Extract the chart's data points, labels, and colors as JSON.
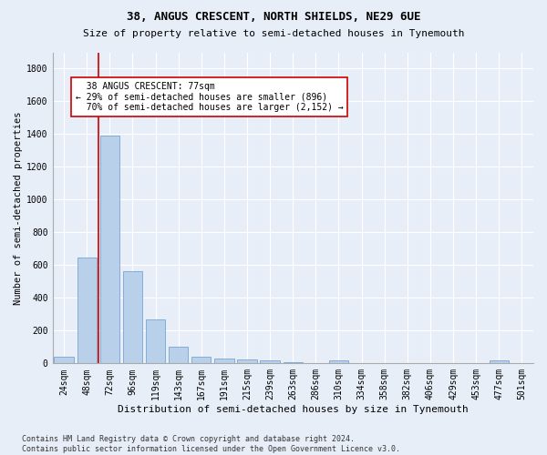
{
  "title1": "38, ANGUS CRESCENT, NORTH SHIELDS, NE29 6UE",
  "title2": "Size of property relative to semi-detached houses in Tynemouth",
  "xlabel": "Distribution of semi-detached houses by size in Tynemouth",
  "ylabel": "Number of semi-detached properties",
  "footer": "Contains HM Land Registry data © Crown copyright and database right 2024.\nContains public sector information licensed under the Open Government Licence v3.0.",
  "bar_labels": [
    "24sqm",
    "48sqm",
    "72sqm",
    "96sqm",
    "119sqm",
    "143sqm",
    "167sqm",
    "191sqm",
    "215sqm",
    "239sqm",
    "263sqm",
    "286sqm",
    "310sqm",
    "334sqm",
    "358sqm",
    "382sqm",
    "406sqm",
    "429sqm",
    "453sqm",
    "477sqm",
    "501sqm"
  ],
  "bar_values": [
    40,
    648,
    1390,
    565,
    268,
    104,
    40,
    28,
    22,
    18,
    10,
    0,
    18,
    0,
    0,
    0,
    0,
    0,
    0,
    18,
    0
  ],
  "bar_color": "#b8d0ea",
  "bar_edge_color": "#6699cc",
  "red_line_x": 1.5,
  "annotation_text": "  38 ANGUS CRESCENT: 77sqm\n← 29% of semi-detached houses are smaller (896)\n  70% of semi-detached houses are larger (2,152) →",
  "ylim": [
    0,
    1900
  ],
  "yticks": [
    0,
    200,
    400,
    600,
    800,
    1000,
    1200,
    1400,
    1600,
    1800
  ],
  "background_color": "#e8eef8",
  "grid_color": "#ffffff",
  "annotation_box_color": "#ffffff",
  "annotation_border_color": "#cc0000",
  "red_line_color": "#cc0000",
  "title1_fontsize": 9,
  "title2_fontsize": 8,
  "xlabel_fontsize": 8,
  "ylabel_fontsize": 7.5,
  "tick_fontsize": 7,
  "annotation_fontsize": 7,
  "footer_fontsize": 6
}
